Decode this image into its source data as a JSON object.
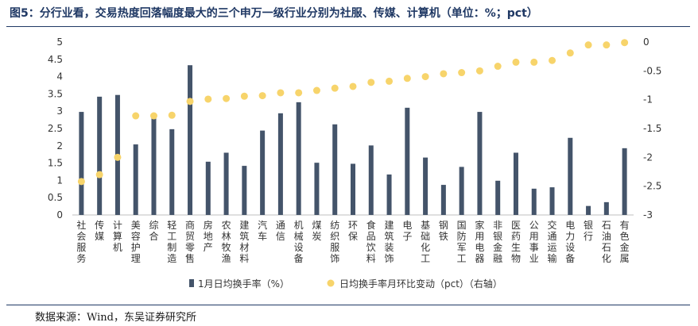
{
  "title": "图5：分行业看，交易热度回落幅度最大的三个申万一级行业分别为社服、传媒、计算机（单位：%；pct）",
  "source": "数据来源：Wind，东吴证券研究所",
  "colors": {
    "bar": "#44546a",
    "dot": "#f7d46b",
    "title": "#1f3864"
  },
  "chart_data": {
    "type": "bar",
    "categories": [
      "社会服务",
      "传媒",
      "计算机",
      "美容护理",
      "综合",
      "轻工制造",
      "商贸零售",
      "房地产",
      "农林牧渔",
      "建筑材料",
      "汽车",
      "通信",
      "机械设备",
      "煤炭",
      "纺织服饰",
      "环保",
      "食品饮料",
      "建筑装饰",
      "电子",
      "基础化工",
      "钢铁",
      "国防军工",
      "家用电器",
      "非银金融",
      "医药生物",
      "公用事业",
      "交通运输",
      "电力设备",
      "银行",
      "石油石化",
      "有色金属"
    ],
    "series": [
      {
        "name": "1月日均换手率（%）",
        "type": "bar",
        "axis": "left",
        "values": [
          2.98,
          3.42,
          3.47,
          2.04,
          2.87,
          2.48,
          4.33,
          1.54,
          1.8,
          1.42,
          2.44,
          2.94,
          3.26,
          1.51,
          2.62,
          1.48,
          2.01,
          1.17,
          3.1,
          1.66,
          0.87,
          1.39,
          2.98,
          0.99,
          1.8,
          0.76,
          0.8,
          2.23,
          0.26,
          0.37,
          1.93
        ]
      },
      {
        "name": "日均换手率月环比变动（pct）（右轴）",
        "type": "scatter",
        "axis": "right",
        "values": [
          -2.42,
          -2.3,
          -2.0,
          -1.28,
          -1.28,
          -1.27,
          -1.03,
          -0.99,
          -0.98,
          -0.94,
          -0.93,
          -0.88,
          -0.88,
          -0.84,
          -0.8,
          -0.77,
          -0.7,
          -0.68,
          -0.63,
          -0.6,
          -0.55,
          -0.53,
          -0.5,
          -0.42,
          -0.35,
          -0.35,
          -0.32,
          -0.19,
          -0.05,
          -0.05,
          -0.01
        ]
      }
    ],
    "y_left": {
      "ylim": [
        0,
        5
      ],
      "ticks": [
        "0",
        "0.5",
        "1",
        "1.5",
        "2",
        "2.5",
        "3",
        "3.5",
        "4",
        "4.5",
        "5"
      ]
    },
    "y_right": {
      "ylim": [
        -3,
        0
      ],
      "ticks": [
        "0",
        "-0.5",
        "-1",
        "-1.5",
        "-2",
        "-2.5",
        "-3"
      ]
    },
    "legend_position": "bottom",
    "grid": false
  }
}
